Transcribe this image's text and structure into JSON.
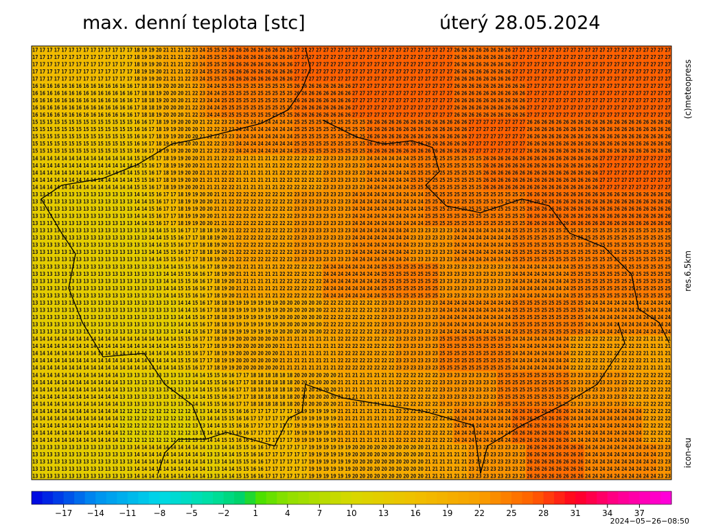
{
  "header": {
    "title": "max. denní teplota [stc]",
    "date": "úterý 28.05.2024"
  },
  "side_labels": [
    "(c)meteopress",
    "res.6.5km",
    "icon-eu"
  ],
  "map": {
    "rows": [
      "17 17 17 17 17 17 17 17 17 17 17 17 17 17 18 19 19 20 21 21 21 22 23 24 25 25 25 26 26 26 26 26 26 26 26 26 27 27 27 27 27 27 27 27 27 27 27 27 27 27 27 27 27 27 27 27 27 27 26 26 26 26 26 26 26 26 27 27 27 27 27 27 27 27 27 27 27 27 27 27 27 27 27 27 27 27 27 27",
      "17 17 17 17 17 17 17 17 17 17 17 17 17 17 18 19 19 20 21 21 21 22 23 24 25 25 25 26 26 26 26 26 26 26 26 26 27 27 27 27 27 27 27 27 27 27 27 27 27 27 27 27 27 27 27 27 27 27 26 26 26 26 26 26 26 26 27 27 27 27 27 27 27 27 27 27 27 27 27 27 27 27 27 27 27 27 27 27",
      "17 17 17 17 17 17 17 17 17 17 17 17 17 17 18 19 19 20 21 21 21 22 23 24 25 25 25 26 26 26 26 26 26 26 26 26 27 27 27 27 27 27 27 27 27 27 27 27 27 27 27 27 27 27 27 27 27 27 26 26 26 26 26 26 26 26 27 27 27 27 27 27 27 27 27 27 27 27 27 27 27 27 27 27 27 27 27 27",
      "17 17 17 17 17 17 17 17 17 17 17 17 17 17 18 19 19 20 21 21 21 22 23 24 25 25 25 26 26 26 26 26 26 26 26 26 27 27 27 27 27 27 27 27 27 27 27 27 27 27 27 27 27 27 27 27 27 27 26 26 26 26 26 26 26 26 27 27 27 27 27 27 27 27 27 27 27 27 27 27 27 27 27 27 27 27 27 27",
      "17 17 17 17 17 17 17 17 17 17 17 17 17 17 18 19 19 20 21 21 21 22 23 24 25 25 25 26 26 26 26 26 26 26 26 26 27 27 27 27 27 27 27 27 27 27 27 27 27 27 27 27 27 27 27 27 27 27 26 26 26 26 26 26 26 26 27 27 27 27 27 27 27 27 27 27 27 27 27 27 27 27 27 27 27 27 27 27",
      "16 16 16 16 16 16 16 16 16 16 16 16 16 16 17 18 18 19 20 20 20 21 22 23 24 24 25 25 25 25 25 25 25 25 25 25 26 26 26 26 26 26 26 26 27 27 27 27 27 27 27 27 27 27 27 27 27 27 26 26 26 26 26 26 26 26 26 26 27 27 27 27 27 27 27 27 27 27 27 27 27 27 27 27 27 27 27 27",
      "16 16 16 16 16 16 16 16 16 16 16 16 16 16 17 18 18 19 20 20 20 21 22 23 24 24 25 25 25 25 25 25 25 25 25 25 26 26 26 26 26 26 26 26 27 27 27 27 27 27 27 27 27 27 27 27 27 27 26 26 26 26 26 26 26 26 26 26 27 27 27 27 27 27 27 27 27 27 27 27 27 27 27 27 27 27 27 27",
      "16 16 16 16 16 16 16 16 16 16 16 16 16 16 17 18 18 19 20 20 20 21 22 23 24 24 25 25 25 25 25 25 25 25 25 25 26 26 26 26 26 26 26 26 27 27 27 27 27 27 27 27 27 27 27 27 27 27 26 26 26 26 26 26 26 26 26 26 27 27 27 27 27 27 27 27 27 27 27 27 27 27 27 27 27 27 27 27",
      "16 16 16 16 16 16 16 16 16 16 16 16 16 16 17 18 18 19 20 20 20 21 22 23 24 24 25 25 25 25 25 25 25 25 25 25 26 26 26 26 26 26 26 26 27 27 27 27 27 27 27 27 27 27 27 27 27 27 26 26 26 26 26 26 26 26 26 26 27 27 27 27 27 27 27 27 27 27 27 27 27 27 27 27 27 27 27 27",
      "16 16 16 16 16 16 16 16 16 16 16 16 16 16 17 18 18 19 20 20 20 21 22 23 24 24 25 25 25 25 25 25 25 25 25 25 26 26 26 26 26 26 26 26 27 27 27 27 27 27 27 27 27 27 27 27 27 27 26 26 26 26 26 26 26 26 26 26 27 27 27 27 27 27 27 27 27 27 27 27 27 27 27 27 27 27 27 27",
      "15 15 15 15 15 15 15 15 15 15 15 15 15 15 16 16 17 18 19 19 20 20 20 21 22 22 23 23 24 24 24 24 24 24 24 24 25 25 25 25 25 25 25 25 25 25 26 26 26 26 26 26 26 26 26 26 26 26 26 26 27 27 27 27 27 27 27 27 26 26 26 26 26 26 26 26 26 26 26 26 26 26 26 26 26 26 26 26",
      "15 15 15 15 15 15 15 15 15 15 15 15 15 15 16 16 17 18 19 19 20 20 20 21 22 22 23 23 24 24 24 24 24 24 24 24 25 25 25 25 25 25 25 25 25 25 26 26 26 26 26 26 26 26 26 26 26 26 26 26 27 27 27 27 27 27 27 27 26 26 26 26 26 26 26 26 26 26 26 26 26 26 26 26 26 26 26 26",
      "15 15 15 15 15 15 15 15 15 15 15 15 15 15 16 16 17 18 19 19 20 20 20 21 22 22 23 23 24 24 24 24 24 24 24 24 25 25 25 25 25 25 25 25 25 25 26 26 26 26 26 26 26 26 26 26 26 26 26 26 27 27 27 27 27 27 27 27 26 26 26 26 26 26 26 26 26 26 26 26 26 26 26 26 26 26 26 26",
      "15 15 15 15 15 15 15 15 15 15 15 15 15 15 16 16 17 18 19 19 20 20 20 21 22 22 23 23 24 24 24 24 24 24 24 24 25 25 25 25 25 25 25 25 25 25 26 26 26 26 26 26 26 26 26 26 26 26 26 26 27 27 27 27 27 27 27 27 26 26 26 26 26 26 26 26 26 26 26 26 26 26 26 26 26 26 26 26",
      "15 15 15 15 15 15 15 15 15 15 15 15 15 15 16 16 17 18 19 19 20 20 20 21 22 22 23 23 24 24 24 24 24 24 24 24 25 25 25 25 25 25 25 25 25 25 26 26 26 26 26 26 26 26 26 26 26 26 26 26 27 27 27 27 27 27 27 27 26 26 26 26 26 26 26 26 26 26 26 26 26 26 26 26 26 26 26 26",
      "14 14 14 14 14 14 14 14 14 14 14 14 14 14 15 15 16 17 18 19 19 20 20 21 21 21 22 22 21 21 21 21 21 21 22 22 22 22 22 22 23 23 23 23 23 23 24 24 24 24 24 24 25 25 25 25 25 25 25 25 25 25 26 26 26 26 26 26 26 26 26 26 26 26 26 26 26 26 27 27 27 27 27 27 27 27 27 27",
      "14 14 14 14 14 14 14 14 14 14 14 14 14 14 15 15 16 17 18 19 19 20 20 21 21 21 22 22 21 21 21 21 21 21 22 22 22 22 22 22 23 23 23 23 23 23 24 24 24 24 24 24 25 25 25 25 25 25 25 25 25 25 26 26 26 26 26 26 26 26 26 26 26 26 26 26 26 26 27 27 27 27 27 27 27 27 27 27",
      "14 14 14 14 14 14 14 14 14 14 14 14 14 14 15 15 16 17 18 19 19 20 20 21 21 21 22 22 21 21 21 21 21 21 22 22 22 22 22 22 23 23 23 23 23 23 24 24 24 24 24 24 25 25 25 25 25 25 25 25 25 25 26 26 26 26 26 26 26 26 26 26 26 26 26 26 26 26 27 27 27 27 27 27 27 27 27 27",
      "14 14 14 14 14 14 14 14 14 14 14 14 14 14 15 15 16 17 18 19 19 20 20 21 21 21 22 22 21 21 21 21 21 21 22 22 22 22 22 22 23 23 23 23 23 23 24 24 24 24 24 24 25 25 25 25 25 25 25 25 25 25 26 26 26 26 26 26 26 26 26 26 26 26 26 26 26 26 27 27 27 27 27 27 27 27 27 27",
      "14 14 14 14 14 14 14 14 14 14 14 14 14 14 15 15 16 17 18 19 19 20 20 21 21 21 22 22 21 21 21 21 21 21 22 22 22 22 22 22 23 23 23 23 23 23 24 24 24 24 24 24 25 25 25 25 25 25 25 25 25 25 26 26 26 26 26 26 26 26 26 26 26 26 26 26 26 26 27 27 27 27 27 27 27 27 27 27",
      "13 13 13 13 13 13 13 13 13 13 13 13 13 13 14 14 15 16 17 17 18 19 19 20 20 21 21 22 22 22 22 22 22 22 22 22 23 23 23 23 23 23 23 23 24 24 24 24 24 24 24 24 24 24 25 25 25 25 25 25 25 25 25 25 25 25 25 25 26 26 26 26 26 26 26 26 26 26 26 26 26 26 26 26 26 26 26 26",
      "13 13 13 13 13 13 13 13 13 13 13 13 13 13 14 14 15 16 17 17 18 19 19 20 20 21 21 22 22 22 22 22 22 22 22 22 23 23 23 23 23 23 23 23 24 24 24 24 24 24 24 24 24 24 25 25 25 25 25 25 25 25 25 25 25 25 25 25 26 26 26 26 26 26 26 26 26 26 26 26 26 26 26 26 26 26 26 26",
      "13 13 13 13 13 13 13 13 13 13 13 13 13 13 14 14 15 16 17 17 18 19 19 20 20 21 21 22 22 22 22 22 22 22 22 22 23 23 23 23 23 23 23 23 24 24 24 24 24 24 24 24 24 24 25 25 25 25 25 25 25 25 25 25 25 25 25 25 26 26 26 26 26 26 26 26 26 26 26 26 26 26 26 26 26 26 26 26",
      "13 13 13 13 13 13 13 13 13 13 13 13 13 13 14 14 15 16 17 17 18 19 19 20 20 21 21 22 22 22 22 22 22 22 22 22 23 23 23 23 23 23 23 23 24 24 24 24 24 24 24 24 24 24 25 25 25 25 25 25 25 25 25 25 25 25 25 25 26 26 26 26 26 26 26 26 26 26 26 26 26 26 26 26 26 26 26 26",
      "13 13 13 13 13 13 13 13 13 13 13 13 13 13 14 14 15 16 17 17 18 19 19 20 20 21 21 22 22 22 22 22 22 22 22 22 23 23 23 23 23 23 23 23 24 24 24 24 24 24 24 24 24 24 25 25 25 25 25 25 25 25 25 25 25 25 25 25 26 26 26 26 26 26 26 26 26 26 26 26 26 26 26 26 26 26 26 26",
      "13 13 13 13 13 13 13 13 13 13 13 13 13 13 13 13 14 14 15 15 16 17 17 18 18 19 20 21 22 22 22 22 22 22 22 22 23 23 23 23 23 23 23 23 24 24 24 24 24 24 24 24 23 23 23 23 23 23 24 24 24 24 24 24 24 24 25 25 25 25 25 25 25 25 25 25 25 25 25 25 25 25 25 25 25 25 25 25",
      "13 13 13 13 13 13 13 13 13 13 13 13 13 13 13 13 14 14 15 15 16 17 17 18 18 19 20 21 22 22 22 22 22 22 22 22 23 23 23 23 23 23 23 23 24 24 24 24 24 24 24 24 23 23 23 23 23 23 24 24 24 24 24 24 24 24 25 25 25 25 25 25 25 25 25 25 25 25 25 25 25 25 25 25 25 25 25 25",
      "13 13 13 13 13 13 13 13 13 13 13 13 13 13 13 13 14 14 15 15 16 17 17 18 18 19 20 21 22 22 22 22 22 22 22 22 23 23 23 23 23 23 23 23 24 24 24 24 24 24 24 24 23 23 23 23 23 23 24 24 24 24 24 24 24 24 25 25 25 25 25 25 25 25 25 25 25 25 25 25 25 25 25 25 25 25 25 25",
      "13 13 13 13 13 13 13 13 13 13 13 13 13 13 13 13 14 14 15 15 16 17 17 18 18 19 20 21 22 22 22 22 22 22 22 22 23 23 23 23 23 23 23 23 24 24 24 24 24 24 24 24 23 23 23 23 23 23 24 24 24 24 24 24 24 24 25 25 25 25 25 25 25 25 25 25 25 25 25 25 25 25 25 25 25 25 25 25",
      "13 13 13 13 13 13 13 13 13 13 13 13 13 13 13 13 14 14 15 15 16 17 17 18 18 19 20 21 22 22 22 22 22 22 22 22 23 23 23 23 23 23 23 23 24 24 24 24 24 24 24 24 23 23 23 23 23 23 24 24 24 24 24 24 24 24 25 25 25 25 25 25 25 25 25 25 25 25 25 25 25 25 25 25 25 25 25 25",
      "13 13 13 13 13 13 13 13 13 13 13 13 13 13 13 13 13 13 14 14 15 15 16 16 17 18 19 20 21 21 21 21 21 21 22 22 22 22 22 22 24 24 24 24 24 24 24 24 25 25 25 25 25 25 25 25 23 23 23 23 23 23 23 23 23 23 24 24 24 24 24 24 24 24 25 25 25 25 25 25 25 25 25 25 25 25 25 25",
      "13 13 13 13 13 13 13 13 13 13 13 13 13 13 13 13 13 13 14 14 15 15 16 16 17 18 19 20 21 21 21 21 21 21 22 22 22 22 22 22 24 24 24 24 24 24 24 24 25 25 25 25 25 25 25 25 23 23 23 23 23 23 23 23 23 23 24 24 24 24 24 24 24 24 25 25 25 25 25 25 25 25 25 25 25 25 25 25",
      "13 13 13 13 13 13 13 13 13 13 13 13 13 13 13 13 13 13 14 14 15 15 16 16 17 18 19 20 21 21 21 21 21 21 22 22 22 22 22 22 24 24 24 24 24 24 24 24 25 25 25 25 25 25 25 25 23 23 23 23 23 23 23 23 23 23 24 24 24 24 24 24 24 24 25 25 25 25 25 25 25 25 25 25 25 25 25 25",
      "13 13 13 13 13 13 13 13 13 13 13 13 13 13 13 13 13 13 14 14 15 15 16 16 17 18 19 20 21 21 21 21 21 21 22 22 22 22 22 22 24 24 24 24 24 24 24 24 25 25 25 25 25 25 25 25 23 23 23 23 23 23 23 23 23 23 24 24 24 24 24 24 24 24 25 25 25 25 25 25 25 25 25 25 25 25 25 25",
      "13 13 13 13 13 13 13 13 13 13 13 13 13 13 13 13 13 13 14 14 15 15 16 16 17 18 19 20 21 21 21 21 21 21 22 22 22 22 22 22 24 24 24 24 24 24 24 24 25 25 25 25 25 25 25 25 23 23 23 23 23 23 23 23 23 23 24 24 24 24 24 24 24 24 25 25 25 25 25 25 25 25 25 25 25 25 25 25",
      "13 13 13 13 13 13 13 13 13 13 13 13 13 13 13 13 13 13 13 13 14 14 15 16 17 18 18 19 19 19 19 19 19 19 20 20 20 20 20 20 22 22 22 22 22 22 22 22 23 23 23 23 23 23 23 23 24 24 24 24 24 24 24 24 24 24 25 25 25 25 25 25 25 25 25 25 24 24 24 24 24 24 24 24 24 24 24 24",
      "13 13 13 13 13 13 13 13 13 13 13 13 13 13 13 13 13 13 13 13 14 14 15 16 17 18 18 19 19 19 19 19 19 19 20 20 20 20 20 20 22 22 22 22 22 22 22 22 23 23 23 23 23 23 23 23 24 24 24 24 24 24 24 24 24 24 25 25 25 25 25 25 25 25 25 25 24 24 24 24 24 24 24 24 24 24 24 24",
      "13 13 13 13 13 13 13 13 13 13 13 13 13 13 13 13 13 13 13 13 14 14 15 16 17 18 18 19 19 19 19 19 19 19 20 20 20 20 20 20 22 22 22 22 22 22 22 22 23 23 23 23 23 23 23 23 24 24 24 24 24 24 24 24 24 24 25 25 25 25 25 25 25 25 25 25 24 24 24 24 24 24 24 24 24 24 24 24",
      "13 13 13 13 13 13 13 13 13 13 13 13 13 13 13 13 13 13 13 13 14 14 15 16 17 18 18 19 19 19 19 19 19 19 20 20 20 20 20 20 22 22 22 22 22 22 22 22 23 23 23 23 23 23 23 23 24 24 24 24 24 24 24 24 24 24 25 25 25 25 25 25 25 25 25 25 24 24 24 24 24 24 24 24 24 24 24 24",
      "13 13 13 13 13 13 13 13 13 13 13 13 13 13 13 13 13 13 13 13 14 14 15 16 17 18 18 19 19 19 19 19 19 19 20 20 20 20 20 20 22 22 22 22 22 22 22 22 23 23 23 23 23 23 23 23 24 24 24 24 24 24 24 24 24 24 25 25 25 25 25 25 25 25 25 25 24 24 24 24 24 24 24 24 24 24 24 24",
      "14 14 14 14 14 14 14 14 14 14 14 14 14 14 14 14 14 14 14 14 15 15 16 17 17 18 19 19 20 20 20 20 20 20 21 21 21 21 21 21 21 21 22 22 22 22 22 22 22 22 23 23 23 23 23 23 25 25 25 25 25 25 25 25 25 25 24 24 24 24 24 24 24 24 22 22 22 22 22 22 22 22 22 22 21 21 21 21",
      "14 14 14 14 14 14 14 14 14 14 14 14 14 14 14 14 14 14 14 14 15 15 16 17 17 18 19 19 20 20 20 20 20 20 21 21 21 21 21 21 21 21 22 22 22 22 22 22 22 22 23 23 23 23 23 23 25 25 25 25 25 25 25 25 25 25 24 24 24 24 24 24 24 24 22 22 22 22 22 22 22 22 22 22 21 21 21 21",
      "14 14 14 14 14 14 14 14 14 14 14 14 14 14 14 14 14 14 14 14 15 15 16 17 17 18 19 19 20 20 20 20 20 20 21 21 21 21 21 21 21 21 22 22 22 22 22 22 22 22 23 23 23 23 23 23 25 25 25 25 25 25 25 25 25 25 24 24 24 24 24 24 24 24 22 22 22 22 22 22 22 22 22 22 21 21 21 21",
      "14 14 14 14 14 14 14 14 14 14 14 14 14 14 14 14 14 14 14 14 15 15 16 17 17 18 19 19 20 20 20 20 20 20 21 21 21 21 21 21 21 21 22 22 22 22 22 22 22 22 23 23 23 23 23 23 25 25 25 25 25 25 25 25 25 25 24 24 24 24 24 24 24 24 22 22 22 22 22 22 22 22 22 22 21 21 21 21",
      "14 14 14 14 14 14 14 14 14 14 14 14 14 14 14 14 14 14 14 14 15 15 16 17 17 18 19 19 20 20 20 20 20 20 21 21 21 21 21 21 21 21 22 22 22 22 22 22 22 22 23 23 23 23 23 23 25 25 25 25 25 25 25 25 25 25 24 24 24 24 24 24 24 24 22 22 22 22 22 22 22 22 22 22 21 21 21 21",
      "14 14 14 14 14 14 14 14 14 14 14 14 13 13 13 13 13 13 13 13 13 13 14 14 15 15 16 16 17 17 18 18 18 18 18 18 20 20 20 20 20 20 21 21 21 21 21 21 21 21 22 22 22 22 22 22 23 23 23 23 23 23 23 23 25 25 25 25 25 25 25 25 25 25 23 23 23 23 23 23 23 23 22 22 22 22 22 22",
      "14 14 14 14 14 14 14 14 14 14 14 14 13 13 13 13 13 13 13 13 13 13 14 14 15 15 16 16 17 17 18 18 18 18 18 18 20 20 20 20 20 20 21 21 21 21 21 21 21 21 22 22 22 22 22 22 23 23 23 23 23 23 23 23 25 25 25 25 25 25 25 25 25 25 23 23 23 23 23 23 23 23 22 22 22 22 22 22",
      "14 14 14 14 14 14 14 14 14 14 14 14 13 13 13 13 13 13 13 13 13 13 14 14 15 15 16 16 17 17 18 18 18 18 18 18 20 20 20 20 20 20 21 21 21 21 21 21 21 21 22 22 22 22 22 22 23 23 23 23 23 23 23 23 25 25 25 25 25 25 25 25 25 25 23 23 23 23 23 23 23 23 22 22 22 22 22 22",
      "14 14 14 14 14 14 14 14 14 14 14 14 13 13 13 13 13 13 13 13 13 13 14 14 15 15 16 16 17 17 18 18 18 18 18 18 20 20 20 20 20 20 21 21 21 21 21 21 21 21 22 22 22 22 22 22 23 23 23 23 23 23 23 23 25 25 25 25 25 25 25 25 25 25 23 23 23 23 23 23 23 23 22 22 22 22 22 22",
      "14 14 14 14 14 14 14 14 14 14 14 14 13 13 13 13 13 13 13 13 13 13 14 14 15 15 16 16 17 17 18 18 18 18 18 18 20 20 20 20 20 20 21 21 21 21 21 21 21 21 22 22 22 22 22 22 23 23 23 23 23 23 23 23 25 25 25 25 25 25 25 25 25 25 23 23 23 23 23 23 23 23 22 22 22 22 22 22",
      "14 14 14 14 14 14 14 14 14 14 14 14 12 12 12 12 12 12 12 12 12 12 13 13 14 14 15 15 16 16 17 17 17 17 17 17 19 19 19 19 19 19 21 21 21 21 21 21 21 21 22 22 22 22 22 22 22 22 24 24 24 24 24 24 24 24 26 26 26 26 26 26 26 26 24 24 24 24 24 24 24 24 24 24 22 22 22 22",
      "14 14 14 14 14 14 14 14 14 14 14 14 12 12 12 12 12 12 12 12 12 12 13 13 14 14 15 15 16 16 17 17 17 17 17 17 19 19 19 19 19 19 21 21 21 21 21 21 21 21 22 22 22 22 22 22 22 22 24 24 24 24 24 24 24 24 26 26 26 26 26 26 26 26 24 24 24 24 24 24 24 24 24 24 22 22 22 22",
      "14 14 14 14 14 14 14 14 14 14 14 14 12 12 12 12 12 12 12 12 12 12 13 13 14 14 15 15 16 16 17 17 17 17 17 17 19 19 19 19 19 19 21 21 21 21 21 21 21 21 22 22 22 22 22 22 22 22 24 24 24 24 24 24 24 24 26 26 26 26 26 26 26 26 24 24 24 24 24 24 24 24 24 24 22 22 22 22",
      "14 14 14 14 14 14 14 14 14 14 14 14 12 12 12 12 12 12 12 12 12 12 13 13 14 14 15 15 16 16 17 17 17 17 17 17 19 19 19 19 19 19 21 21 21 21 21 21 21 21 22 22 22 22 22 22 22 22 24 24 24 24 24 24 24 24 26 26 26 26 26 26 26 26 24 24 24 24 24 24 24 24 24 24 22 22 22 22",
      "14 14 14 14 14 14 14 14 14 14 14 14 12 12 12 12 12 12 12 12 12 12 13 13 14 14 15 15 16 16 17 17 17 17 17 17 19 19 19 19 19 19 21 21 21 21 21 21 21 21 22 22 22 22 22 22 22 22 24 24 24 24 24 24 24 24 26 26 26 26 26 26 26 26 24 24 24 24 24 24 24 24 24 24 22 22 22 22",
      "13 13 13 13 13 13 13 13 13 13 13 13 13 13 14 14 14 14 14 14 14 14 14 14 13 13 14 14 15 15 16 16 17 17 17 17 17 17 19 19 19 19 19 19 20 20 20 20 20 20 20 20 20 20 21 21 21 21 21 21 23 23 23 23 23 23 23 23 26 26 26 26 26 26 26 26 24 24 24 24 24 24 24 24 24 24 23 23",
      "13 13 13 13 13 13 13 13 13 13 13 13 13 13 14 14 14 14 14 14 14 14 14 14 13 13 14 14 15 15 16 16 17 17 17 17 17 17 19 19 19 19 19 19 20 20 20 20 20 20 20 20 20 20 21 21 21 21 21 21 23 23 23 23 23 23 23 23 26 26 26 26 26 26 26 26 24 24 24 24 24 24 24 24 24 24 23 23",
      "13 13 13 13 13 13 13 13 13 13 13 13 13 13 14 14 14 14 14 14 14 14 14 14 13 13 14 14 15 15 16 16 17 17 17 17 17 17 19 19 19 19 19 19 20 20 20 20 20 20 20 20 20 20 21 21 21 21 21 21 23 23 23 23 23 23 23 23 26 26 26 26 26 26 26 26 24 24 24 24 24 24 24 24 24 24 23 23",
      "13 13 13 13 13 13 13 13 13 13 13 13 13 13 14 14 14 14 14 14 14 14 14 14 13 13 14 14 15 15 16 16 17 17 17 17 17 17 19 19 19 19 19 19 20 20 20 20 20 20 20 20 20 20 21 21 21 21 21 21 23 23 23 23 23 23 23 23 26 26 26 26 26 26 26 26 24 24 24 24 24 24 24 24 24 24 23 23",
      "13 13 13 13 13 13 13 13 13 13 13 13 13 13 14 14 14 14 14 14 14 14 14 14 13 13 14 14 15 15 16 16 17 17 17 17 17 17 19 19 19 19 19 19 20 20 20 20 20 20 20 20 20 20 21 21 21 21 21 21 23 23 23 23 23 23 23 23 26 26 26 26 26 26 26 26 24 24 24 24 24 24 24 24 24 24 23 23"
    ]
  },
  "colorbar": {
    "labels": [
      "−17",
      "−14",
      "−11",
      "−8",
      "−5",
      "−2",
      "1",
      "4",
      "7",
      "10",
      "13",
      "16",
      "19",
      "22",
      "25",
      "28",
      "31",
      "34",
      "37"
    ]
  },
  "timestamp": "2024−05−26−08:50"
}
